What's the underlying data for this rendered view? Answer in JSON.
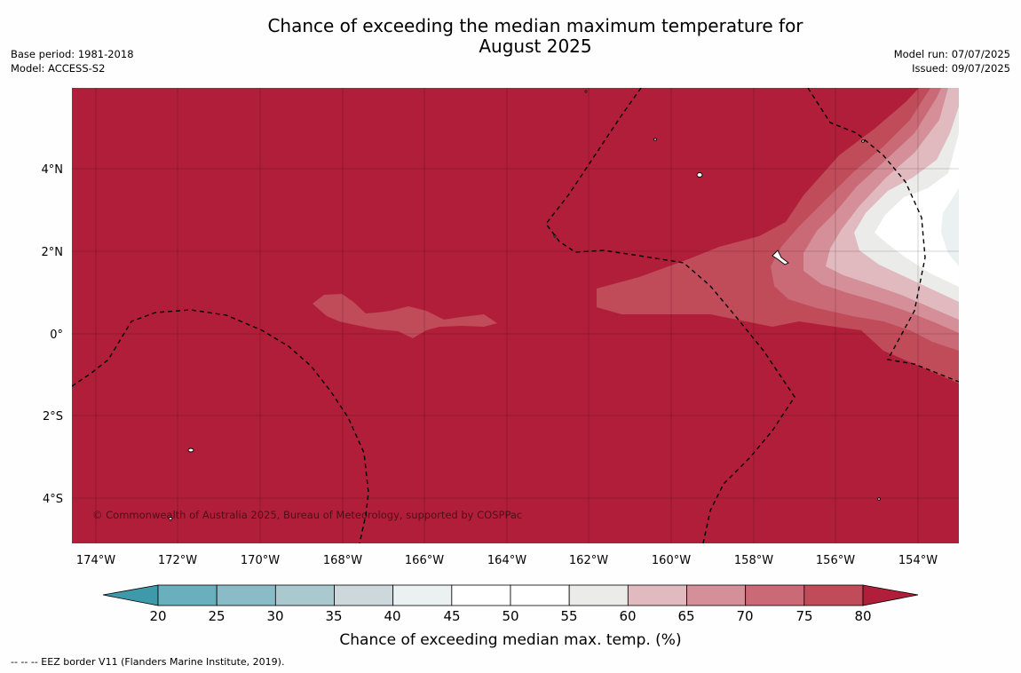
{
  "title": {
    "line1": "Chance of exceeding the median maximum temperature for",
    "line2": "August 2025"
  },
  "meta_left": {
    "base_period": "Base period: 1981-2018",
    "model": "Model: ACCESS-S2"
  },
  "meta_right": {
    "model_run": "Model run: 07/07/2025",
    "issued": "Issued: 09/07/2025"
  },
  "map": {
    "lat_labels": [
      "4°N",
      "2°N",
      "0°",
      "2°S",
      "4°S"
    ],
    "lon_labels": [
      "174°W",
      "172°W",
      "170°W",
      "168°W",
      "166°W",
      "164°W",
      "162°W",
      "160°W",
      "158°W",
      "156°W",
      "154°W"
    ],
    "copyright": "© Commonwealth of Australia 2025, Bureau of Meteorology, supported by COSPPac"
  },
  "colorbar": {
    "tick_labels": [
      "20",
      "25",
      "30",
      "35",
      "40",
      "45",
      "50",
      "55",
      "60",
      "65",
      "70",
      "75",
      "80"
    ],
    "label": "Chance of exceeding median max. temp. (%)",
    "under_color": "#3e9aaa",
    "over_color": "#b11e39",
    "colors": [
      "#6aafbe",
      "#8abcc7",
      "#aac9ce",
      "#cdd8dd",
      "#ebf0f1",
      "#ffffff",
      "#ffffff",
      "#ebebea",
      "#e1bac0",
      "#d48f99",
      "#ca6a76",
      "#c04b59"
    ]
  },
  "footer": {
    "legend": "--  --  -- EEZ border V11 (Flanders Marine Institute, 2019)."
  }
}
